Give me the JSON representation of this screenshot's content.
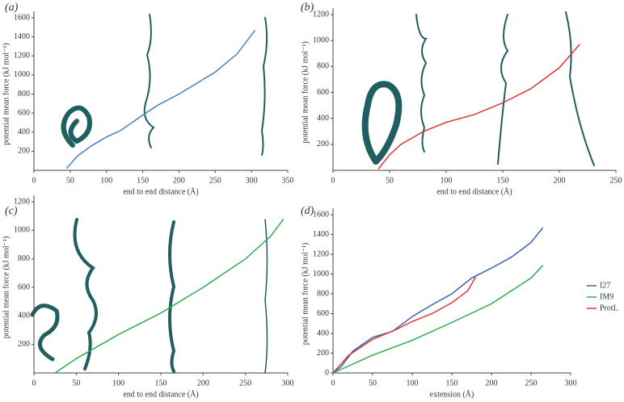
{
  "chart_data": [
    {
      "type": "line",
      "panel_label": "(a)",
      "xlabel": "end to end distance (Å)",
      "ylabel": "potential mean force (kJ mol⁻¹)",
      "xlim": [
        0,
        350
      ],
      "xticks": [
        0,
        50,
        100,
        150,
        200,
        250,
        300,
        350
      ],
      "ylim": [
        0,
        1600
      ],
      "yticks": [
        200,
        400,
        600,
        800,
        1000,
        1200,
        1400,
        1600
      ],
      "series": [
        {
          "color": "#4a7fc1",
          "x": [
            45,
            60,
            80,
            100,
            120,
            150,
            170,
            200,
            250,
            280,
            305
          ],
          "values": [
            20,
            150,
            260,
            350,
            420,
            580,
            680,
            800,
            1030,
            1220,
            1470
          ]
        }
      ]
    },
    {
      "type": "line",
      "panel_label": "(b)",
      "xlabel": "end to end distance (Å)",
      "ylabel": "potential mean force (kJ mol⁻¹)",
      "xlim": [
        0,
        250
      ],
      "xticks": [
        0,
        50,
        100,
        150,
        200,
        250
      ],
      "ylim": [
        0,
        1200
      ],
      "yticks": [
        200,
        400,
        600,
        800,
        1000,
        1200
      ],
      "series": [
        {
          "color": "#e0363a",
          "x": [
            40,
            50,
            60,
            80,
            100,
            125,
            150,
            175,
            200,
            218
          ],
          "values": [
            10,
            120,
            200,
            300,
            370,
            430,
            520,
            630,
            790,
            970
          ]
        }
      ]
    },
    {
      "type": "line",
      "panel_label": "(c)",
      "xlabel": "end to end distance (Å)",
      "ylabel": "potential mean force (kJ mol⁻¹)",
      "xlim": [
        0,
        300
      ],
      "xticks": [
        0,
        50,
        100,
        150,
        200,
        250,
        300
      ],
      "ylim": [
        0,
        1200
      ],
      "yticks": [
        200,
        400,
        600,
        800,
        1000,
        1200
      ],
      "series": [
        {
          "color": "#2eae4e",
          "x": [
            25,
            50,
            100,
            150,
            200,
            250,
            280,
            295
          ],
          "values": [
            0,
            100,
            270,
            420,
            600,
            800,
            960,
            1080
          ]
        }
      ]
    },
    {
      "type": "line",
      "panel_label": "(d)",
      "xlabel": "extension (Å)",
      "ylabel": "potential mean force (kJ mol⁻¹)",
      "legend": "right",
      "xlim": [
        0,
        300
      ],
      "xticks": [
        0,
        50,
        100,
        150,
        200,
        250,
        300
      ],
      "ylim": [
        0,
        1600
      ],
      "yticks": [
        0,
        200,
        400,
        600,
        800,
        1000,
        1200,
        1400,
        1600
      ],
      "series": [
        {
          "name": "I27",
          "color": "#3a62b0",
          "x": [
            0,
            10,
            25,
            50,
            75,
            100,
            125,
            150,
            175,
            200,
            225,
            250,
            265
          ],
          "values": [
            0,
            60,
            220,
            360,
            420,
            570,
            690,
            800,
            960,
            1060,
            1170,
            1320,
            1470
          ]
        },
        {
          "name": "IM9",
          "color": "#2eae4e",
          "x": [
            0,
            25,
            50,
            100,
            150,
            200,
            250,
            265
          ],
          "values": [
            0,
            90,
            180,
            330,
            510,
            700,
            960,
            1090
          ]
        },
        {
          "name": "ProtL",
          "color": "#e0363a",
          "x": [
            0,
            20,
            50,
            80,
            100,
            125,
            150,
            170,
            180
          ],
          "values": [
            0,
            180,
            340,
            440,
            520,
            600,
            710,
            830,
            970
          ]
        }
      ]
    }
  ]
}
